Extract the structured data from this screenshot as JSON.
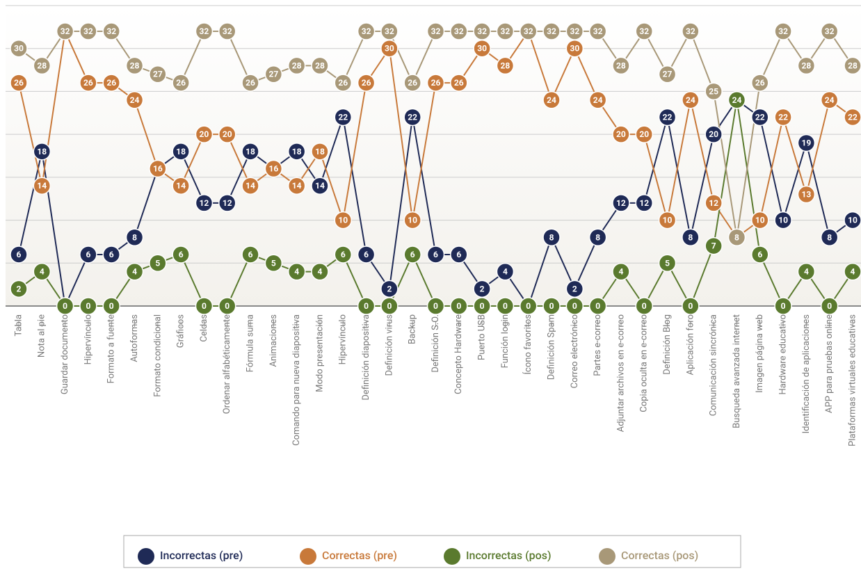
{
  "chart_data": {
    "type": "line",
    "categories": [
      "Tabla",
      "Nota al pie",
      "Guardar documento",
      "Hipervínculo",
      "Formato a fuente",
      "Autoformas",
      "Formato condicional",
      "Gráficos",
      "Celdas",
      "Ordenar alfabéticamente",
      "Fórmula suma",
      "Animaciones",
      "Comando para nueva diapositiva",
      "Modo presentación",
      "Hipervínculo",
      "Definición diapositiva",
      "Definición virus",
      "Backup",
      "Definición S.O.",
      "Concepto Hardware",
      "Puerto USB",
      "Función login",
      "Ícono favoritos",
      "Definición Spam",
      "Correo electrónico",
      "Partes e-correo",
      "Adjuntar archivos en e-correo",
      "Copia oculta en e-correo",
      "Definición Blog",
      "Aplicación foro",
      "Comunicación sincrónica",
      "Busqueda avanzada internet",
      "Imagen página web",
      "Hardware educativo",
      "Identificación de aplicaciones",
      "APP para pruebas online",
      "Plataformas virtuales educativas"
    ],
    "series": [
      {
        "name": "Incorrectas (pre)",
        "color": "#1f2a56",
        "values": [
          6,
          18,
          0,
          6,
          6,
          8,
          16,
          18,
          12,
          12,
          18,
          16,
          18,
          14,
          22,
          6,
          2,
          22,
          6,
          6,
          2,
          4,
          0,
          8,
          2,
          8,
          12,
          12,
          22,
          8,
          20,
          24,
          22,
          10,
          19,
          8,
          10
        ]
      },
      {
        "name": "Correctas (pre)",
        "color": "#c8793a",
        "values": [
          26,
          14,
          32,
          26,
          26,
          24,
          16,
          14,
          20,
          20,
          14,
          16,
          14,
          18,
          10,
          26,
          30,
          10,
          26,
          26,
          30,
          28,
          32,
          24,
          30,
          24,
          20,
          20,
          10,
          24,
          12,
          8,
          10,
          22,
          13,
          24,
          22
        ]
      },
      {
        "name": "Incorrectas (pos)",
        "color": "#5a7a2e",
        "values": [
          2,
          4,
          0,
          0,
          0,
          4,
          5,
          6,
          0,
          0,
          6,
          5,
          4,
          4,
          6,
          0,
          0,
          6,
          0,
          0,
          0,
          0,
          0,
          0,
          0,
          0,
          4,
          0,
          5,
          0,
          7,
          24,
          6,
          0,
          4,
          0,
          4
        ]
      },
      {
        "name": "Correctas (pos)",
        "color": "#a89878",
        "values": [
          30,
          28,
          32,
          32,
          32,
          28,
          27,
          26,
          32,
          32,
          26,
          27,
          28,
          28,
          26,
          32,
          32,
          26,
          32,
          32,
          32,
          32,
          32,
          32,
          32,
          32,
          28,
          32,
          27,
          32,
          25,
          8,
          26,
          32,
          28,
          32,
          28
        ]
      }
    ],
    "ylim": [
      0,
      35
    ],
    "yticks": [
      0,
      5,
      10,
      15,
      20,
      25,
      30,
      35
    ],
    "grid": true,
    "legend": "bottom"
  }
}
